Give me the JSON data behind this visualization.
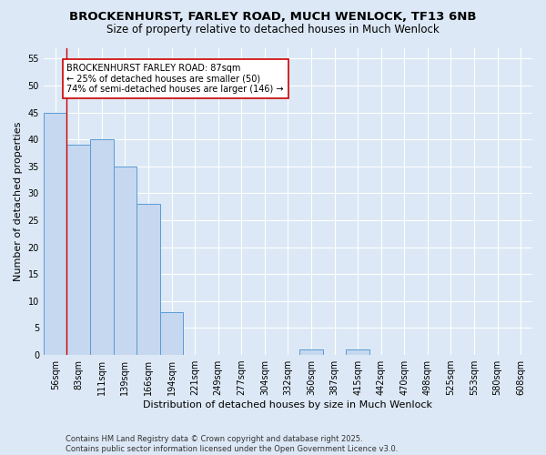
{
  "title1": "BROCKENHURST, FARLEY ROAD, MUCH WENLOCK, TF13 6NB",
  "title2": "Size of property relative to detached houses in Much Wenlock",
  "xlabel": "Distribution of detached houses by size in Much Wenlock",
  "ylabel": "Number of detached properties",
  "categories": [
    "56sqm",
    "83sqm",
    "111sqm",
    "139sqm",
    "166sqm",
    "194sqm",
    "221sqm",
    "249sqm",
    "277sqm",
    "304sqm",
    "332sqm",
    "360sqm",
    "387sqm",
    "415sqm",
    "442sqm",
    "470sqm",
    "498sqm",
    "525sqm",
    "553sqm",
    "580sqm",
    "608sqm"
  ],
  "values": [
    45,
    39,
    40,
    35,
    28,
    8,
    0,
    0,
    0,
    0,
    0,
    1,
    0,
    1,
    0,
    0,
    0,
    0,
    0,
    0,
    0
  ],
  "bar_color": "#c5d8f0",
  "bar_edge_color": "#5b9bd5",
  "vline_index": 1,
  "annotation_text_line1": "BROCKENHURST FARLEY ROAD: 87sqm",
  "annotation_text_line2": "← 25% of detached houses are smaller (50)",
  "annotation_text_line3": "74% of semi-detached houses are larger (146) →",
  "annotation_box_color": "#ffffff",
  "annotation_box_edge_color": "#cc0000",
  "vline_color": "#cc0000",
  "ylim": [
    0,
    57
  ],
  "yticks": [
    0,
    5,
    10,
    15,
    20,
    25,
    30,
    35,
    40,
    45,
    50,
    55
  ],
  "background_color": "#dce8f5",
  "plot_background": "#dce8f5",
  "grid_color": "#ffffff",
  "footer": "Contains HM Land Registry data © Crown copyright and database right 2025.\nContains public sector information licensed under the Open Government Licence v3.0.",
  "title_fontsize": 9.5,
  "subtitle_fontsize": 8.5,
  "axis_label_fontsize": 8,
  "tick_fontsize": 7,
  "annotation_fontsize": 7,
  "footer_fontsize": 6
}
